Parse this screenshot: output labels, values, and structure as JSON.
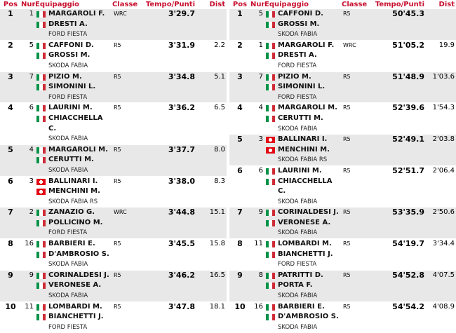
{
  "headers": {
    "pos": "Pos",
    "num": "Num",
    "crew": "Equipaggio",
    "classe": "Classe",
    "tempo": "Tempo/Punti",
    "dist": "Dist"
  },
  "colors": {
    "header": "#c8102e",
    "row_alt": "#e8e8e8"
  },
  "tables": [
    {
      "rows": [
        {
          "pos": "1",
          "num": "1",
          "drivers": [
            {
              "flag": "it",
              "name": "MARGAROLI F."
            },
            {
              "flag": "it",
              "name": "DRESTI A."
            }
          ],
          "car": "FORD FIESTA",
          "classe": "WRC",
          "tempo": "3'29.7",
          "dist": ""
        },
        {
          "pos": "2",
          "num": "5",
          "drivers": [
            {
              "flag": "it",
              "name": "CAFFONI D."
            },
            {
              "flag": "it",
              "name": "GROSSI M."
            }
          ],
          "car": "SKODA FABIA",
          "classe": "R5",
          "tempo": "3'31.9",
          "dist": "2.2"
        },
        {
          "pos": "3",
          "num": "7",
          "drivers": [
            {
              "flag": "it",
              "name": "PIZIO M."
            },
            {
              "flag": "it",
              "name": "SIMONINI L."
            }
          ],
          "car": "FORD FIESTA",
          "classe": "R5",
          "tempo": "3'34.8",
          "dist": "5.1"
        },
        {
          "pos": "4",
          "num": "6",
          "drivers": [
            {
              "flag": "it",
              "name": "LAURINI M."
            },
            {
              "flag": "it",
              "name": "CHIACCHELLA C."
            }
          ],
          "car": "SKODA FABIA",
          "classe": "R5",
          "tempo": "3'36.2",
          "dist": "6.5"
        },
        {
          "pos": "5",
          "num": "4",
          "drivers": [
            {
              "flag": "it",
              "name": "MARGAROLI M."
            },
            {
              "flag": "it",
              "name": "CERUTTI M."
            }
          ],
          "car": "SKODA FABIA",
          "classe": "R5",
          "tempo": "3'37.7",
          "dist": "8.0"
        },
        {
          "pos": "6",
          "num": "3",
          "drivers": [
            {
              "flag": "ch",
              "name": "BALLINARI I."
            },
            {
              "flag": "ch",
              "name": "MENCHINI M."
            }
          ],
          "car": "SKODA FABIA RS",
          "classe": "R5",
          "tempo": "3'38.0",
          "dist": "8.3"
        },
        {
          "pos": "7",
          "num": "2",
          "drivers": [
            {
              "flag": "it",
              "name": "ZANAZIO G."
            },
            {
              "flag": "it",
              "name": "POLLICINO M."
            }
          ],
          "car": "FORD FIESTA",
          "classe": "WRC",
          "tempo": "3'44.8",
          "dist": "15.1"
        },
        {
          "pos": "8",
          "num": "16",
          "drivers": [
            {
              "flag": "it",
              "name": "BARBIERI E."
            },
            {
              "flag": "it",
              "name": "D'AMBROSIO S."
            }
          ],
          "car": "SKODA FABIA",
          "classe": "R5",
          "tempo": "3'45.5",
          "dist": "15.8"
        },
        {
          "pos": "9",
          "num": "9",
          "drivers": [
            {
              "flag": "it",
              "name": "CORINALDESI J."
            },
            {
              "flag": "it",
              "name": "VERONESE A."
            }
          ],
          "car": "SKODA FABIA",
          "classe": "R5",
          "tempo": "3'46.2",
          "dist": "16.5"
        },
        {
          "pos": "10",
          "num": "11",
          "drivers": [
            {
              "flag": "it",
              "name": "LOMBARDI M."
            },
            {
              "flag": "it",
              "name": "BIANCHETTI J."
            }
          ],
          "car": "FORD FIESTA",
          "classe": "R5",
          "tempo": "3'47.8",
          "dist": "18.1"
        }
      ]
    },
    {
      "rows": [
        {
          "pos": "1",
          "num": "5",
          "drivers": [
            {
              "flag": "it",
              "name": "CAFFONI D."
            },
            {
              "flag": "it",
              "name": "GROSSI M."
            }
          ],
          "car": "SKODA FABIA",
          "classe": "R5",
          "tempo": "50'45.3",
          "dist": ""
        },
        {
          "pos": "2",
          "num": "1",
          "drivers": [
            {
              "flag": "it",
              "name": "MARGAROLI F."
            },
            {
              "flag": "it",
              "name": "DRESTI A."
            }
          ],
          "car": "FORD FIESTA",
          "classe": "WRC",
          "tempo": "51'05.2",
          "dist": "19.9"
        },
        {
          "pos": "3",
          "num": "7",
          "drivers": [
            {
              "flag": "it",
              "name": "PIZIO M."
            },
            {
              "flag": "it",
              "name": "SIMONINI L."
            }
          ],
          "car": "FORD FIESTA",
          "classe": "R5",
          "tempo": "51'48.9",
          "dist": "1'03.6"
        },
        {
          "pos": "4",
          "num": "4",
          "drivers": [
            {
              "flag": "it",
              "name": "MARGAROLI M."
            },
            {
              "flag": "it",
              "name": "CERUTTI M."
            }
          ],
          "car": "SKODA FABIA",
          "classe": "R5",
          "tempo": "52'39.6",
          "dist": "1'54.3"
        },
        {
          "pos": "5",
          "num": "3",
          "drivers": [
            {
              "flag": "ch",
              "name": "BALLINARI I."
            },
            {
              "flag": "ch",
              "name": "MENCHINI M."
            }
          ],
          "car": "SKODA FABIA RS",
          "classe": "R5",
          "tempo": "52'49.1",
          "dist": "2'03.8"
        },
        {
          "pos": "6",
          "num": "6",
          "drivers": [
            {
              "flag": "it",
              "name": "LAURINI M."
            },
            {
              "flag": "it",
              "name": "CHIACCHELLA C."
            }
          ],
          "car": "SKODA FABIA",
          "classe": "R5",
          "tempo": "52'51.7",
          "dist": "2'06.4"
        },
        {
          "pos": "7",
          "num": "9",
          "drivers": [
            {
              "flag": "it",
              "name": "CORINALDESI J."
            },
            {
              "flag": "it",
              "name": "VERONESE A."
            }
          ],
          "car": "SKODA FABIA",
          "classe": "R5",
          "tempo": "53'35.9",
          "dist": "2'50.6"
        },
        {
          "pos": "8",
          "num": "11",
          "drivers": [
            {
              "flag": "it",
              "name": "LOMBARDI M."
            },
            {
              "flag": "it",
              "name": "BIANCHETTI J."
            }
          ],
          "car": "FORD FIESTA",
          "classe": "R5",
          "tempo": "54'19.7",
          "dist": "3'34.4"
        },
        {
          "pos": "9",
          "num": "8",
          "drivers": [
            {
              "flag": "it",
              "name": "PATRITTI D."
            },
            {
              "flag": "it",
              "name": "PORTA F."
            }
          ],
          "car": "SKODA FABIA",
          "classe": "R5",
          "tempo": "54'52.8",
          "dist": "4'07.5"
        },
        {
          "pos": "10",
          "num": "16",
          "drivers": [
            {
              "flag": "it",
              "name": "BARBIERI E."
            },
            {
              "flag": "it",
              "name": "D'AMBROSIO S."
            }
          ],
          "car": "SKODA FABIA",
          "classe": "R5",
          "tempo": "54'54.2",
          "dist": "4'08.9"
        }
      ]
    }
  ]
}
